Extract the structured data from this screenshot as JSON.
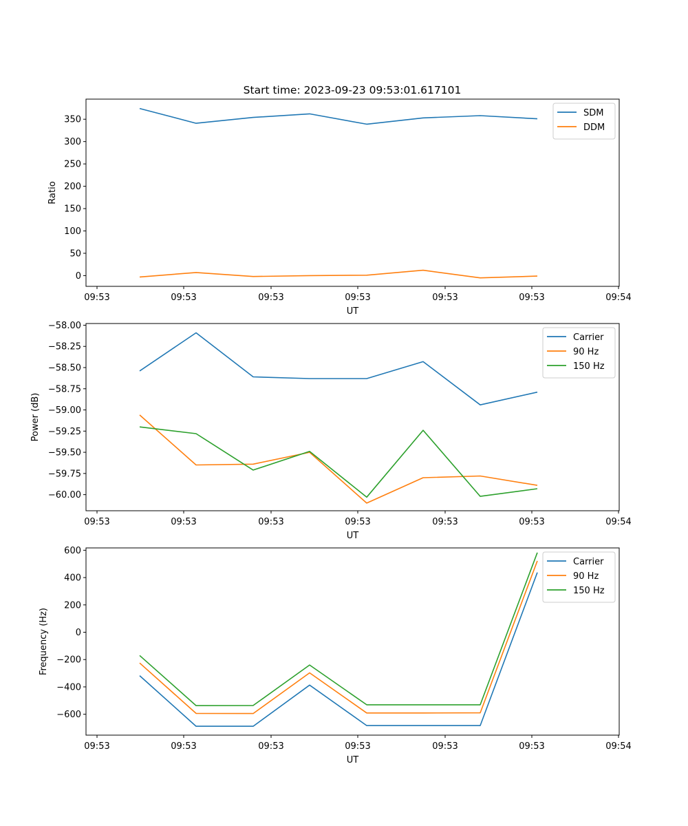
{
  "figure": {
    "title": "Start time: 2023-09-23 09:53:01.617101"
  },
  "chart_data": [
    {
      "type": "line",
      "title": "Start time: 2023-09-23 09:53:01.617101",
      "xlabel": "UT",
      "ylabel": "Ratio",
      "x_tick_labels": [
        "09:53",
        "09:53",
        "09:53",
        "09:53",
        "09:53",
        "09:53",
        "09:54"
      ],
      "y_ticks": [
        0,
        50,
        100,
        150,
        200,
        250,
        300,
        350
      ],
      "y_tick_labels": [
        "0",
        "50",
        "100",
        "150",
        "200",
        "250",
        "300",
        "350"
      ],
      "ylim": [
        -24,
        395
      ],
      "legend_position": "top-right",
      "grid": false,
      "series": [
        {
          "name": "SDM",
          "color": "#1f77b4",
          "values": [
            374,
            341,
            354,
            362,
            339,
            353,
            358,
            351
          ]
        },
        {
          "name": "DDM",
          "color": "#ff7f0e",
          "values": [
            -3,
            7,
            -2,
            0,
            1,
            12,
            -5,
            -1
          ]
        }
      ]
    },
    {
      "type": "line",
      "title": "",
      "xlabel": "UT",
      "ylabel": "Power (dB)",
      "x_tick_labels": [
        "09:53",
        "09:53",
        "09:53",
        "09:53",
        "09:53",
        "09:53",
        "09:54"
      ],
      "y_ticks": [
        -60.0,
        -59.75,
        -59.5,
        -59.25,
        -59.0,
        -58.75,
        -58.5,
        -58.25,
        -58.0
      ],
      "y_tick_labels": [
        "−60.00",
        "−59.75",
        "−59.50",
        "−59.25",
        "−59.00",
        "−58.75",
        "−58.50",
        "−58.25",
        "−58.00"
      ],
      "ylim": [
        -60.19,
        -57.98
      ],
      "legend_position": "top-right",
      "grid": false,
      "series": [
        {
          "name": "Carrier",
          "color": "#1f77b4",
          "values": [
            -58.54,
            -58.09,
            -58.61,
            -58.63,
            -58.63,
            -58.43,
            -58.94,
            -58.79
          ]
        },
        {
          "name": "90 Hz",
          "color": "#ff7f0e",
          "values": [
            -59.06,
            -59.65,
            -59.64,
            -59.5,
            -60.1,
            -59.8,
            -59.78,
            -59.89
          ]
        },
        {
          "name": "150 Hz",
          "color": "#2ca02c",
          "values": [
            -59.2,
            -59.28,
            -59.71,
            -59.49,
            -60.03,
            -59.24,
            -60.02,
            -59.93
          ]
        }
      ]
    },
    {
      "type": "line",
      "title": "",
      "xlabel": "UT",
      "ylabel": "Frequency (Hz)",
      "x_tick_labels": [
        "09:53",
        "09:53",
        "09:53",
        "09:53",
        "09:53",
        "09:53",
        "09:54"
      ],
      "y_ticks": [
        -600,
        -400,
        -200,
        0,
        200,
        400,
        600
      ],
      "y_tick_labels": [
        "−600",
        "−400",
        "−200",
        "0",
        "200",
        "400",
        "600"
      ],
      "ylim": [
        -753,
        617
      ],
      "legend_position": "top-right",
      "grid": false,
      "series": [
        {
          "name": "Carrier",
          "color": "#1f77b4",
          "values": [
            -318,
            -688,
            -688,
            -387,
            -683,
            -683,
            -683,
            437
          ]
        },
        {
          "name": "90 Hz",
          "color": "#ff7f0e",
          "values": [
            -225,
            -594,
            -595,
            -297,
            -591,
            -591,
            -590,
            522
          ]
        },
        {
          "name": "150 Hz",
          "color": "#2ca02c",
          "values": [
            -170,
            -537,
            -536,
            -240,
            -531,
            -531,
            -531,
            583
          ]
        }
      ]
    }
  ]
}
